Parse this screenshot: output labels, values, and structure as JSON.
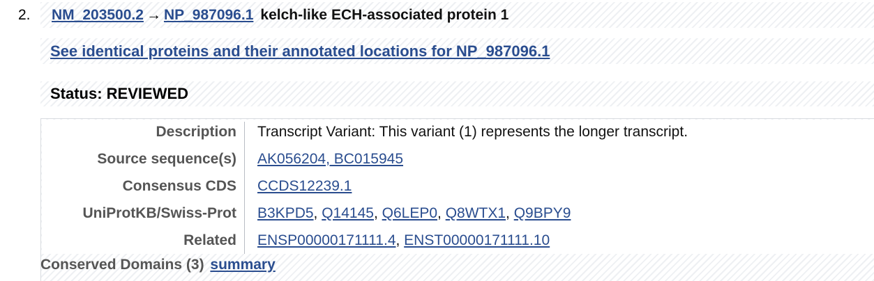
{
  "entry": {
    "number": "2.",
    "transcript": "NM_203500.2",
    "arrow": "→",
    "protein": "NP_987096.1",
    "title": "kelch-like ECH-associated protein 1"
  },
  "identical_link": "See identical proteins and their annotated locations for NP_987096.1",
  "status": "Status: REVIEWED",
  "rows": {
    "description": {
      "label": "Description",
      "value": "Transcript Variant: This variant (1) represents the longer transcript."
    },
    "source": {
      "label": "Source sequence(s)",
      "value": "AK056204, BC015945"
    },
    "consensus": {
      "label": "Consensus CDS",
      "value": "CCDS12239.1"
    },
    "uniprot": {
      "label": "UniProtKB/Swiss-Prot",
      "links": [
        "B3KPD5",
        "Q14145",
        "Q6LEP0",
        "Q8WTX1",
        "Q9BPY9"
      ],
      "separator": ", "
    },
    "related": {
      "label": "Related",
      "links": [
        "ENSP00000171111.4",
        "ENST00000171111.10"
      ],
      "separator": ", "
    }
  },
  "conserved": {
    "label": "Conserved Domains (3)",
    "link": "summary"
  },
  "colors": {
    "link": "#2a4d8f",
    "label": "#555555",
    "stripe": "#eef0f3"
  }
}
